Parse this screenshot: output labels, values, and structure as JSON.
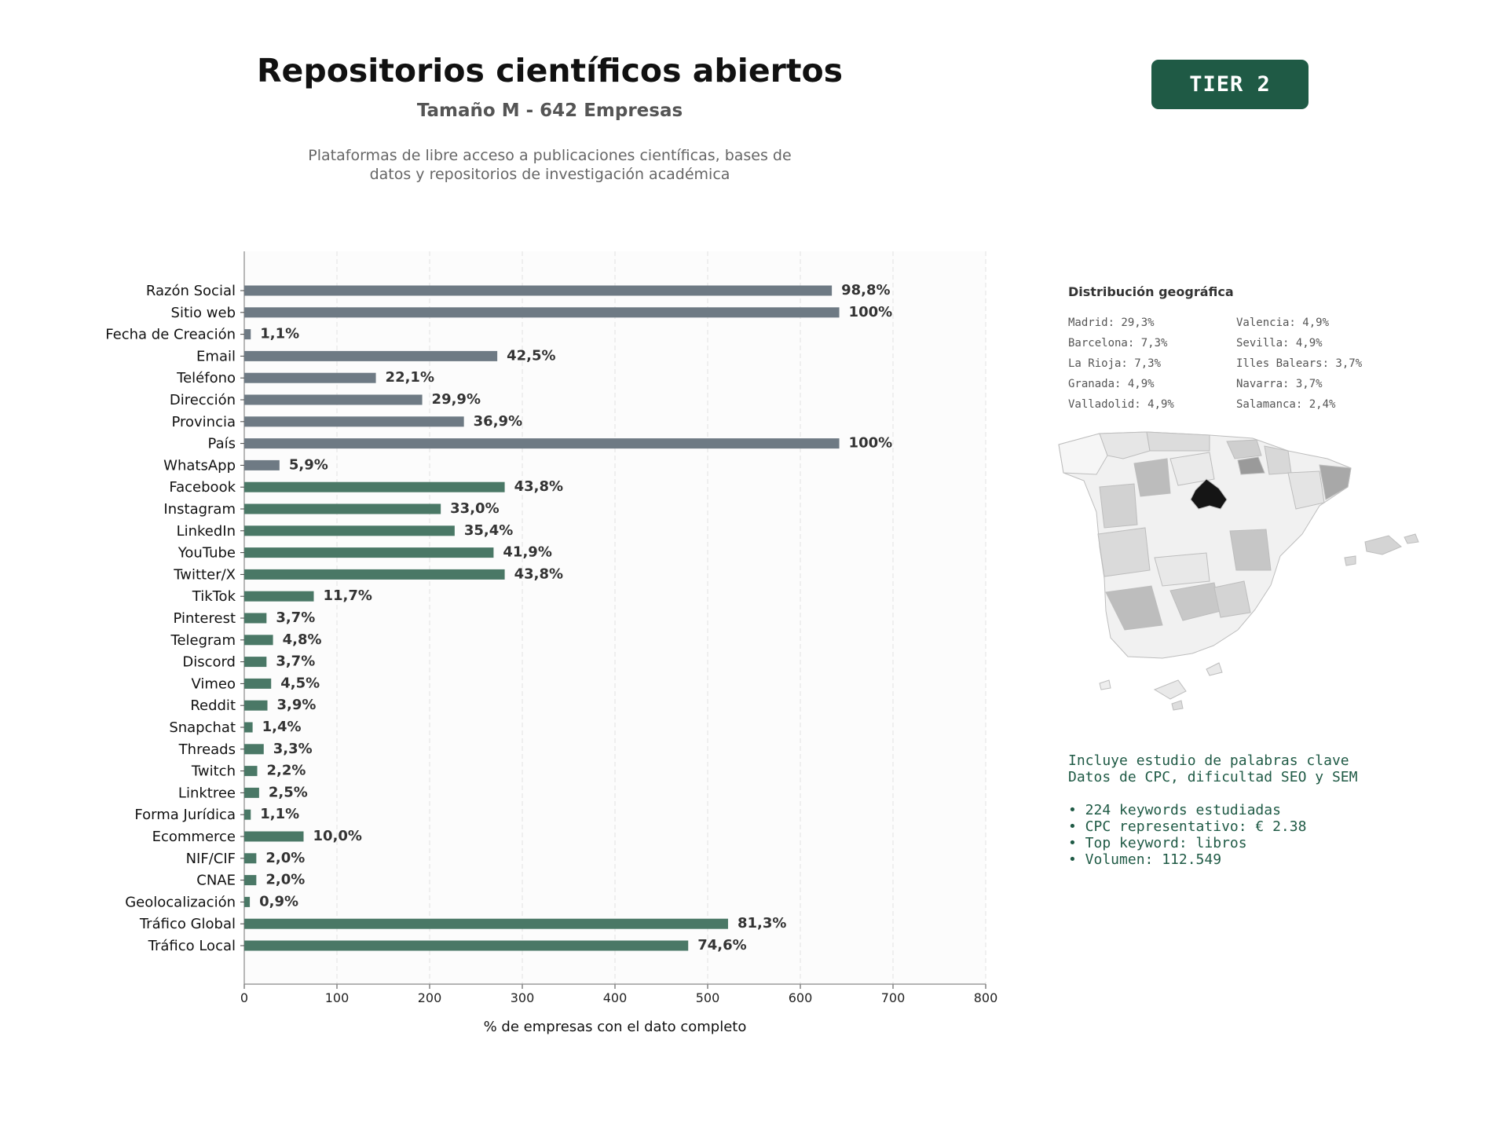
{
  "header": {
    "title": "Repositorios científicos abiertos",
    "subtitle": "Tamaño M - 642 Empresas",
    "description_line1": "Plataformas de libre acceso a publicaciones científicas, bases de",
    "description_line2": "datos y repositorios de investigación académica",
    "tier_badge": "TIER 2"
  },
  "colors": {
    "gray_bar": "#6e7a84",
    "green_bar": "#4a7866",
    "badge": "#1f5a45",
    "seo_text": "#1f5a45"
  },
  "chart_data": {
    "type": "bar",
    "orientation": "horizontal",
    "categories": [
      "Razón Social",
      "Sitio web",
      "Fecha de Creación",
      "Email",
      "Teléfono",
      "Dirección",
      "Provincia",
      "País",
      "WhatsApp",
      "Facebook",
      "Instagram",
      "LinkedIn",
      "YouTube",
      "Twitter/X",
      "TikTok",
      "Pinterest",
      "Telegram",
      "Discord",
      "Vimeo",
      "Reddit",
      "Snapchat",
      "Threads",
      "Twitch",
      "Linktree",
      "Forma Jurídica",
      "Ecommerce",
      "NIF/CIF",
      "CNAE",
      "Geolocalización",
      "Tráfico Global",
      "Tráfico Local"
    ],
    "values": [
      634,
      642,
      7,
      273,
      142,
      192,
      237,
      642,
      38,
      281,
      212,
      227,
      269,
      281,
      75,
      24,
      31,
      24,
      29,
      25,
      9,
      21,
      14,
      16,
      7,
      64,
      13,
      13,
      6,
      522,
      479
    ],
    "labels": [
      "98,8%",
      "100%",
      "1,1%",
      "42,5%",
      "22,1%",
      "29,9%",
      "36,9%",
      "100%",
      "5,9%",
      "43,8%",
      "33,0%",
      "35,4%",
      "41,9%",
      "43,8%",
      "11,7%",
      "3,7%",
      "4,8%",
      "3,7%",
      "4,5%",
      "3,9%",
      "1,4%",
      "3,3%",
      "2,2%",
      "2,5%",
      "1,1%",
      "10,0%",
      "2,0%",
      "2,0%",
      "0,9%",
      "81,3%",
      "74,6%"
    ],
    "groups": [
      "gray",
      "gray",
      "gray",
      "gray",
      "gray",
      "gray",
      "gray",
      "gray",
      "gray",
      "green",
      "green",
      "green",
      "green",
      "green",
      "green",
      "green",
      "green",
      "green",
      "green",
      "green",
      "green",
      "green",
      "green",
      "green",
      "green",
      "green",
      "green",
      "green",
      "green",
      "green",
      "green"
    ],
    "xlabel": "% de empresas con el dato completo",
    "xlim": [
      0,
      800
    ],
    "xticks": [
      0,
      100,
      200,
      300,
      400,
      500,
      600,
      700,
      800
    ],
    "grid": "vertical dashed"
  },
  "geo": {
    "title": "Distribución geográfica",
    "left": [
      "Madrid: 29,3%",
      "Barcelona: 7,3%",
      "La Rioja: 7,3%",
      "Granada: 4,9%",
      "Valladolid: 4,9%"
    ],
    "right": [
      "Valencia: 4,9%",
      "Sevilla: 4,9%",
      "Illes Balears: 3,7%",
      "Navarra: 3,7%",
      "Salamanca: 2,4%"
    ]
  },
  "seo": {
    "line1": "Incluye estudio de palabras clave",
    "line2": "Datos de CPC, dificultad SEO y SEM",
    "bullets": [
      "• 224 keywords estudiadas",
      "• CPC representativo: € 2.38",
      "• Top keyword: libros",
      "• Volumen: 112.549"
    ]
  }
}
